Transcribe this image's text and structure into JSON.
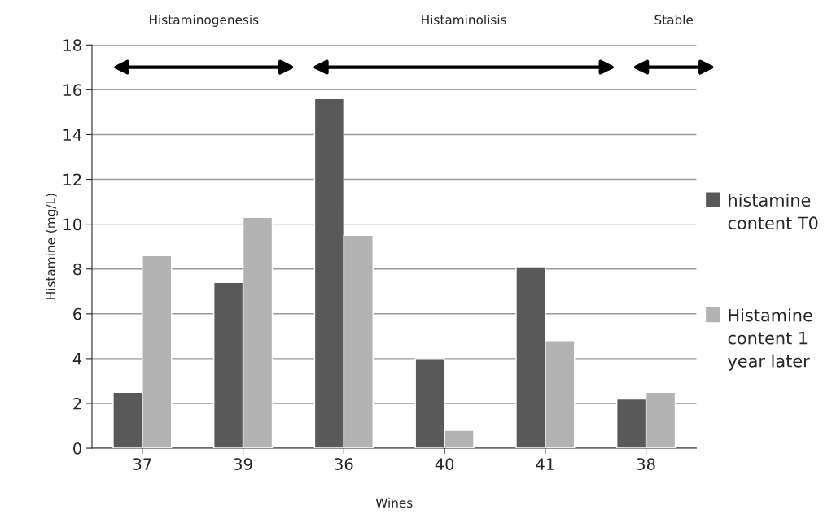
{
  "chart_data": {
    "type": "bar",
    "xlabel": "Wines",
    "ylabel": "Histamine (mg/L)",
    "categories": [
      "37",
      "39",
      "36",
      "40",
      "41",
      "38"
    ],
    "series": [
      {
        "name": "histamine content T0",
        "color": "#595959",
        "values": [
          2.5,
          7.4,
          15.6,
          4.0,
          8.1,
          2.2
        ]
      },
      {
        "name": "Histamine content 1 year later",
        "color": "#b3b3b3",
        "values": [
          8.6,
          10.3,
          9.5,
          0.8,
          4.8,
          2.5
        ]
      }
    ],
    "ylim": [
      0,
      18
    ],
    "yticks": [
      0,
      2,
      4,
      6,
      8,
      10,
      12,
      14,
      16,
      18
    ],
    "grid": "y",
    "legend": "right",
    "annotations": [
      "Histaminogenesis",
      "Histaminolisis",
      "Stable"
    ]
  }
}
